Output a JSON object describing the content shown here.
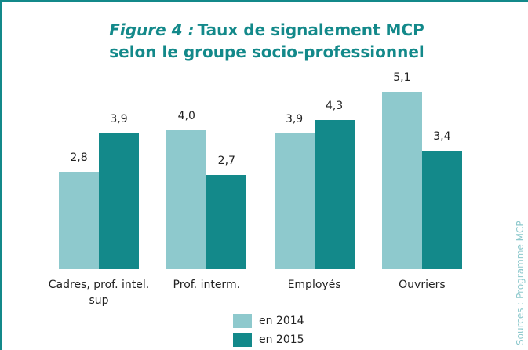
{
  "chart_data": {
    "type": "bar",
    "figure_label": "Figure 4 :",
    "title": "Taux de signalement MCP selon le groupe socio-professionnel",
    "categories": [
      "Cadres, prof. intel. sup",
      "Prof. interm.",
      "Employés",
      "Ouvriers"
    ],
    "series": [
      {
        "name": "en 2014",
        "color": "#8ec9cd",
        "values": [
          2.8,
          4.0,
          3.9,
          5.1
        ],
        "value_labels": [
          "2,8",
          "4,0",
          "3,9",
          "5,1"
        ]
      },
      {
        "name": "en 2015",
        "color": "#13898a",
        "values": [
          3.9,
          2.7,
          4.3,
          3.4
        ],
        "value_labels": [
          "3,9",
          "2,7",
          "4,3",
          "3,4"
        ]
      }
    ],
    "source": "Sources : Programme MCP"
  }
}
